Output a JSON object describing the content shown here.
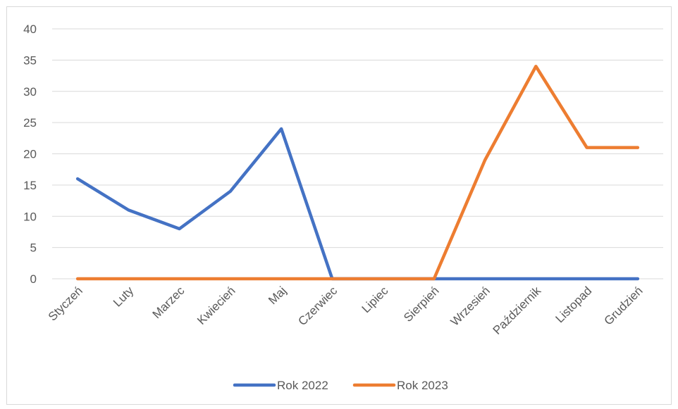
{
  "chart_data": {
    "type": "line",
    "categories": [
      "Styczeń",
      "Luty",
      "Marzec",
      "Kwiecień",
      "Maj",
      "Czerwiec",
      "Lipiec",
      "Sierpień",
      "Wrzesień",
      "Październik",
      "Listopad",
      "Grudzień"
    ],
    "series": [
      {
        "name": "Rok 2022",
        "color": "#4472c4",
        "values": [
          16,
          11,
          8,
          14,
          24,
          0,
          0,
          0,
          0,
          0,
          0,
          0
        ]
      },
      {
        "name": "Rok 2023",
        "color": "#ed7d31",
        "values": [
          0,
          0,
          0,
          0,
          0,
          0,
          0,
          0,
          19,
          34,
          21,
          21
        ]
      }
    ],
    "ylim": [
      0,
      40
    ],
    "yticks": [
      0,
      5,
      10,
      15,
      20,
      25,
      30,
      35,
      40
    ],
    "ytick_labels": [
      "0",
      "5",
      "10",
      "15",
      "20",
      "25",
      "30",
      "35",
      "40"
    ],
    "grid": true,
    "legend_position": "bottom",
    "gridline_color": "#d9d9d9"
  }
}
